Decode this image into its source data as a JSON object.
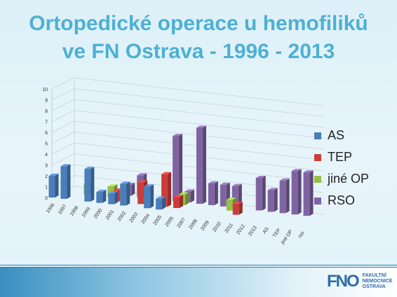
{
  "title_line1": "Ortopedické operace u hemofiliků",
  "title_line2": "ve FN Ostrava - 1996 - 2013",
  "logo": {
    "mark": "FNO",
    "line1": "FAKULTNÍ",
    "line2": "NEMOCNICE",
    "line3": "OSTRAVA"
  },
  "chart_data": {
    "type": "bar",
    "variant": "3d-column",
    "title": "",
    "xlabel": "",
    "ylabel": "",
    "ylim": [
      0,
      10
    ],
    "yticks": [
      0,
      1,
      2,
      3,
      4,
      5,
      6,
      7,
      8,
      9,
      10
    ],
    "categories": [
      "1996",
      "1997",
      "1998",
      "1999",
      "2000",
      "2001",
      "2002",
      "2003",
      "2004",
      "2005",
      "2006",
      "2007",
      "2008",
      "2009",
      "2010",
      "2011",
      "2012",
      "2013",
      "AS",
      "TEP",
      "jiné OP",
      "rso"
    ],
    "series": [
      {
        "name": "AS",
        "color": "#4a7ebb",
        "values": [
          2,
          3,
          0,
          3,
          1,
          1,
          2,
          0,
          2,
          1,
          0,
          0,
          0,
          0,
          0,
          0,
          0,
          0,
          0,
          0,
          0,
          0
        ]
      },
      {
        "name": "TEP",
        "color": "#cc3d3a",
        "values": [
          0,
          0,
          0,
          0,
          0,
          1,
          0,
          2,
          0,
          3,
          1,
          0,
          0,
          0,
          0,
          1,
          0,
          0,
          0,
          0,
          0,
          0
        ]
      },
      {
        "name": "jiné OP",
        "color": "#98c046",
        "values": [
          0,
          0,
          1,
          0,
          1,
          0,
          0,
          0,
          0,
          0,
          1,
          0,
          0,
          0,
          1,
          0,
          0,
          0,
          0,
          0,
          0,
          0
        ]
      },
      {
        "name": "RSO",
        "color": "#8064a2",
        "values": [
          0,
          0,
          0,
          0,
          0,
          1,
          2,
          0,
          0,
          6,
          1,
          7,
          2,
          2,
          2,
          0,
          3,
          2,
          3,
          4,
          4,
          0
        ]
      }
    ],
    "grid": true,
    "legend": "right"
  }
}
